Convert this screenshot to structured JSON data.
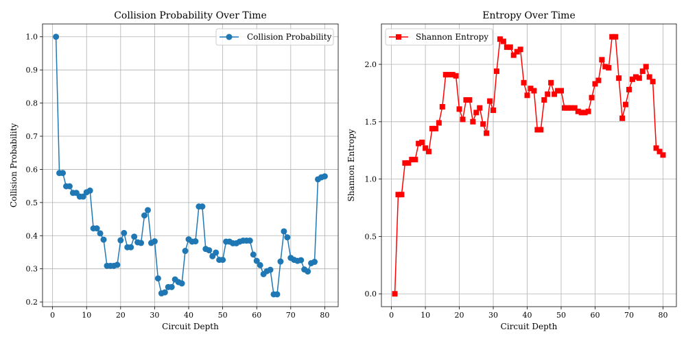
{
  "chart_data": [
    {
      "type": "line",
      "title": "Collision Probability Over Time",
      "xlabel": "Circuit Depth",
      "ylabel": "Collision Probability",
      "xlim": [
        -2.95,
        83.95
      ],
      "ylim": [
        0.1858,
        1.0387
      ],
      "xticks": [
        0,
        10,
        20,
        30,
        40,
        50,
        60,
        70,
        80
      ],
      "xtick_labels": [
        "0",
        "10",
        "20",
        "30",
        "40",
        "50",
        "60",
        "70",
        "80"
      ],
      "yticks": [
        0.2,
        0.3,
        0.4,
        0.5,
        0.6,
        0.7,
        0.8,
        0.9,
        1.0
      ],
      "ytick_labels": [
        "0.2",
        "0.3",
        "0.4",
        "0.5",
        "0.6",
        "0.7",
        "0.8",
        "0.9",
        "1.0"
      ],
      "grid": true,
      "legend_position": "top-right",
      "series": [
        {
          "name": "Collision Probability",
          "color": "#1f77b4",
          "marker": "circle",
          "x": [
            1,
            2,
            3,
            4,
            5,
            6,
            7,
            8,
            9,
            10,
            11,
            12,
            13,
            14,
            15,
            16,
            17,
            18,
            19,
            20,
            21,
            22,
            23,
            24,
            25,
            26,
            27,
            28,
            29,
            30,
            31,
            32,
            33,
            34,
            35,
            36,
            37,
            38,
            39,
            40,
            41,
            42,
            43,
            44,
            45,
            46,
            47,
            48,
            49,
            50,
            51,
            52,
            53,
            54,
            55,
            56,
            57,
            58,
            59,
            60,
            61,
            62,
            63,
            64,
            65,
            66,
            67,
            68,
            69,
            70,
            71,
            72,
            73,
            74,
            75,
            76,
            77,
            78,
            79,
            80
          ],
          "values": [
            1.0,
            0.589,
            0.589,
            0.549,
            0.549,
            0.529,
            0.529,
            0.518,
            0.518,
            0.531,
            0.536,
            0.422,
            0.422,
            0.407,
            0.388,
            0.309,
            0.309,
            0.309,
            0.312,
            0.386,
            0.408,
            0.365,
            0.365,
            0.397,
            0.38,
            0.378,
            0.461,
            0.477,
            0.378,
            0.383,
            0.271,
            0.226,
            0.229,
            0.245,
            0.245,
            0.268,
            0.26,
            0.256,
            0.354,
            0.389,
            0.382,
            0.383,
            0.488,
            0.488,
            0.36,
            0.356,
            0.338,
            0.349,
            0.327,
            0.327,
            0.382,
            0.382,
            0.377,
            0.377,
            0.382,
            0.385,
            0.385,
            0.385,
            0.343,
            0.324,
            0.311,
            0.284,
            0.293,
            0.297,
            0.223,
            0.223,
            0.322,
            0.413,
            0.395,
            0.333,
            0.327,
            0.324,
            0.326,
            0.298,
            0.292,
            0.317,
            0.321,
            0.57,
            0.576,
            0.579
          ]
        }
      ]
    },
    {
      "type": "line",
      "title": "Entropy Over Time",
      "xlabel": "Circuit Depth",
      "ylabel": "Shannon Entropy",
      "xlim": [
        -2.95,
        83.95
      ],
      "ylim": [
        -0.112,
        2.352
      ],
      "xticks": [
        0,
        10,
        20,
        30,
        40,
        50,
        60,
        70,
        80
      ],
      "xtick_labels": [
        "0",
        "10",
        "20",
        "30",
        "40",
        "50",
        "60",
        "70",
        "80"
      ],
      "yticks": [
        0.0,
        0.5,
        1.0,
        1.5,
        2.0
      ],
      "ytick_labels": [
        "0.0",
        "0.5",
        "1.0",
        "1.5",
        "2.0"
      ],
      "grid": true,
      "legend_position": "top-left",
      "series": [
        {
          "name": "Shannon Entropy",
          "color": "#ff0000",
          "marker": "square",
          "x": [
            1,
            2,
            3,
            4,
            5,
            6,
            7,
            8,
            9,
            10,
            11,
            12,
            13,
            14,
            15,
            16,
            17,
            18,
            19,
            20,
            21,
            22,
            23,
            24,
            25,
            26,
            27,
            28,
            29,
            30,
            31,
            32,
            33,
            34,
            35,
            36,
            37,
            38,
            39,
            40,
            41,
            42,
            43,
            44,
            45,
            46,
            47,
            48,
            49,
            50,
            51,
            52,
            53,
            54,
            55,
            56,
            57,
            58,
            59,
            60,
            61,
            62,
            63,
            64,
            65,
            66,
            67,
            68,
            69,
            70,
            71,
            72,
            73,
            74,
            75,
            76,
            77,
            78,
            79,
            80
          ],
          "values": [
            0.0,
            0.865,
            0.865,
            1.14,
            1.14,
            1.17,
            1.17,
            1.31,
            1.32,
            1.27,
            1.24,
            1.44,
            1.44,
            1.49,
            1.63,
            1.91,
            1.91,
            1.91,
            1.9,
            1.61,
            1.52,
            1.69,
            1.69,
            1.5,
            1.58,
            1.62,
            1.48,
            1.4,
            1.68,
            1.6,
            1.94,
            2.22,
            2.2,
            2.15,
            2.15,
            2.08,
            2.11,
            2.13,
            1.84,
            1.73,
            1.79,
            1.77,
            1.43,
            1.43,
            1.69,
            1.74,
            1.84,
            1.74,
            1.77,
            1.77,
            1.62,
            1.62,
            1.62,
            1.62,
            1.59,
            1.58,
            1.58,
            1.59,
            1.71,
            1.83,
            1.86,
            2.04,
            1.98,
            1.97,
            2.24,
            2.24,
            1.88,
            1.53,
            1.65,
            1.78,
            1.87,
            1.89,
            1.88,
            1.94,
            1.98,
            1.89,
            1.85,
            1.27,
            1.24,
            1.21
          ]
        }
      ]
    }
  ]
}
